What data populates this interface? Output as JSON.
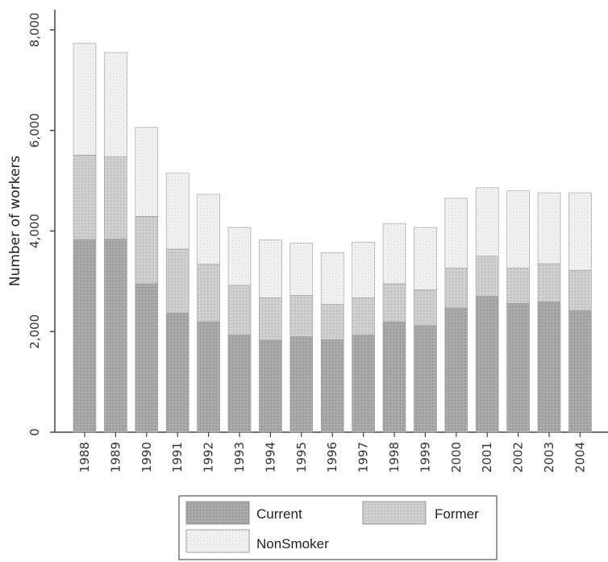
{
  "chart_data": {
    "type": "bar",
    "stacked": true,
    "title": "",
    "xlabel": "",
    "ylabel": "Number of workers",
    "ylim": [
      0,
      8000
    ],
    "yticks": [
      "0",
      "2,000",
      "4,000",
      "6,000",
      "8,000"
    ],
    "categories": [
      "1988",
      "1989",
      "1990",
      "1991",
      "1992",
      "1993",
      "1994",
      "1995",
      "1996",
      "1997",
      "1998",
      "1999",
      "2000",
      "2001",
      "2002",
      "2003",
      "2004"
    ],
    "series": [
      {
        "name": "Current",
        "color": "#a9a9a9",
        "values": [
          3830,
          3840,
          2950,
          2370,
          2190,
          1930,
          1830,
          1900,
          1840,
          1930,
          2190,
          2120,
          2470,
          2700,
          2560,
          2590,
          2420
        ]
      },
      {
        "name": "Former",
        "color": "#cfcfcf",
        "values": [
          1680,
          1640,
          1340,
          1270,
          1150,
          990,
          840,
          820,
          700,
          740,
          760,
          710,
          790,
          800,
          700,
          760,
          800
        ]
      },
      {
        "name": "NonSmoker",
        "color": "#efefef",
        "values": [
          2220,
          2070,
          1770,
          1510,
          1390,
          1150,
          1150,
          1040,
          1030,
          1110,
          1200,
          1240,
          1390,
          1360,
          1540,
          1410,
          1540
        ]
      }
    ],
    "grid": false,
    "legend_position": "bottom"
  }
}
